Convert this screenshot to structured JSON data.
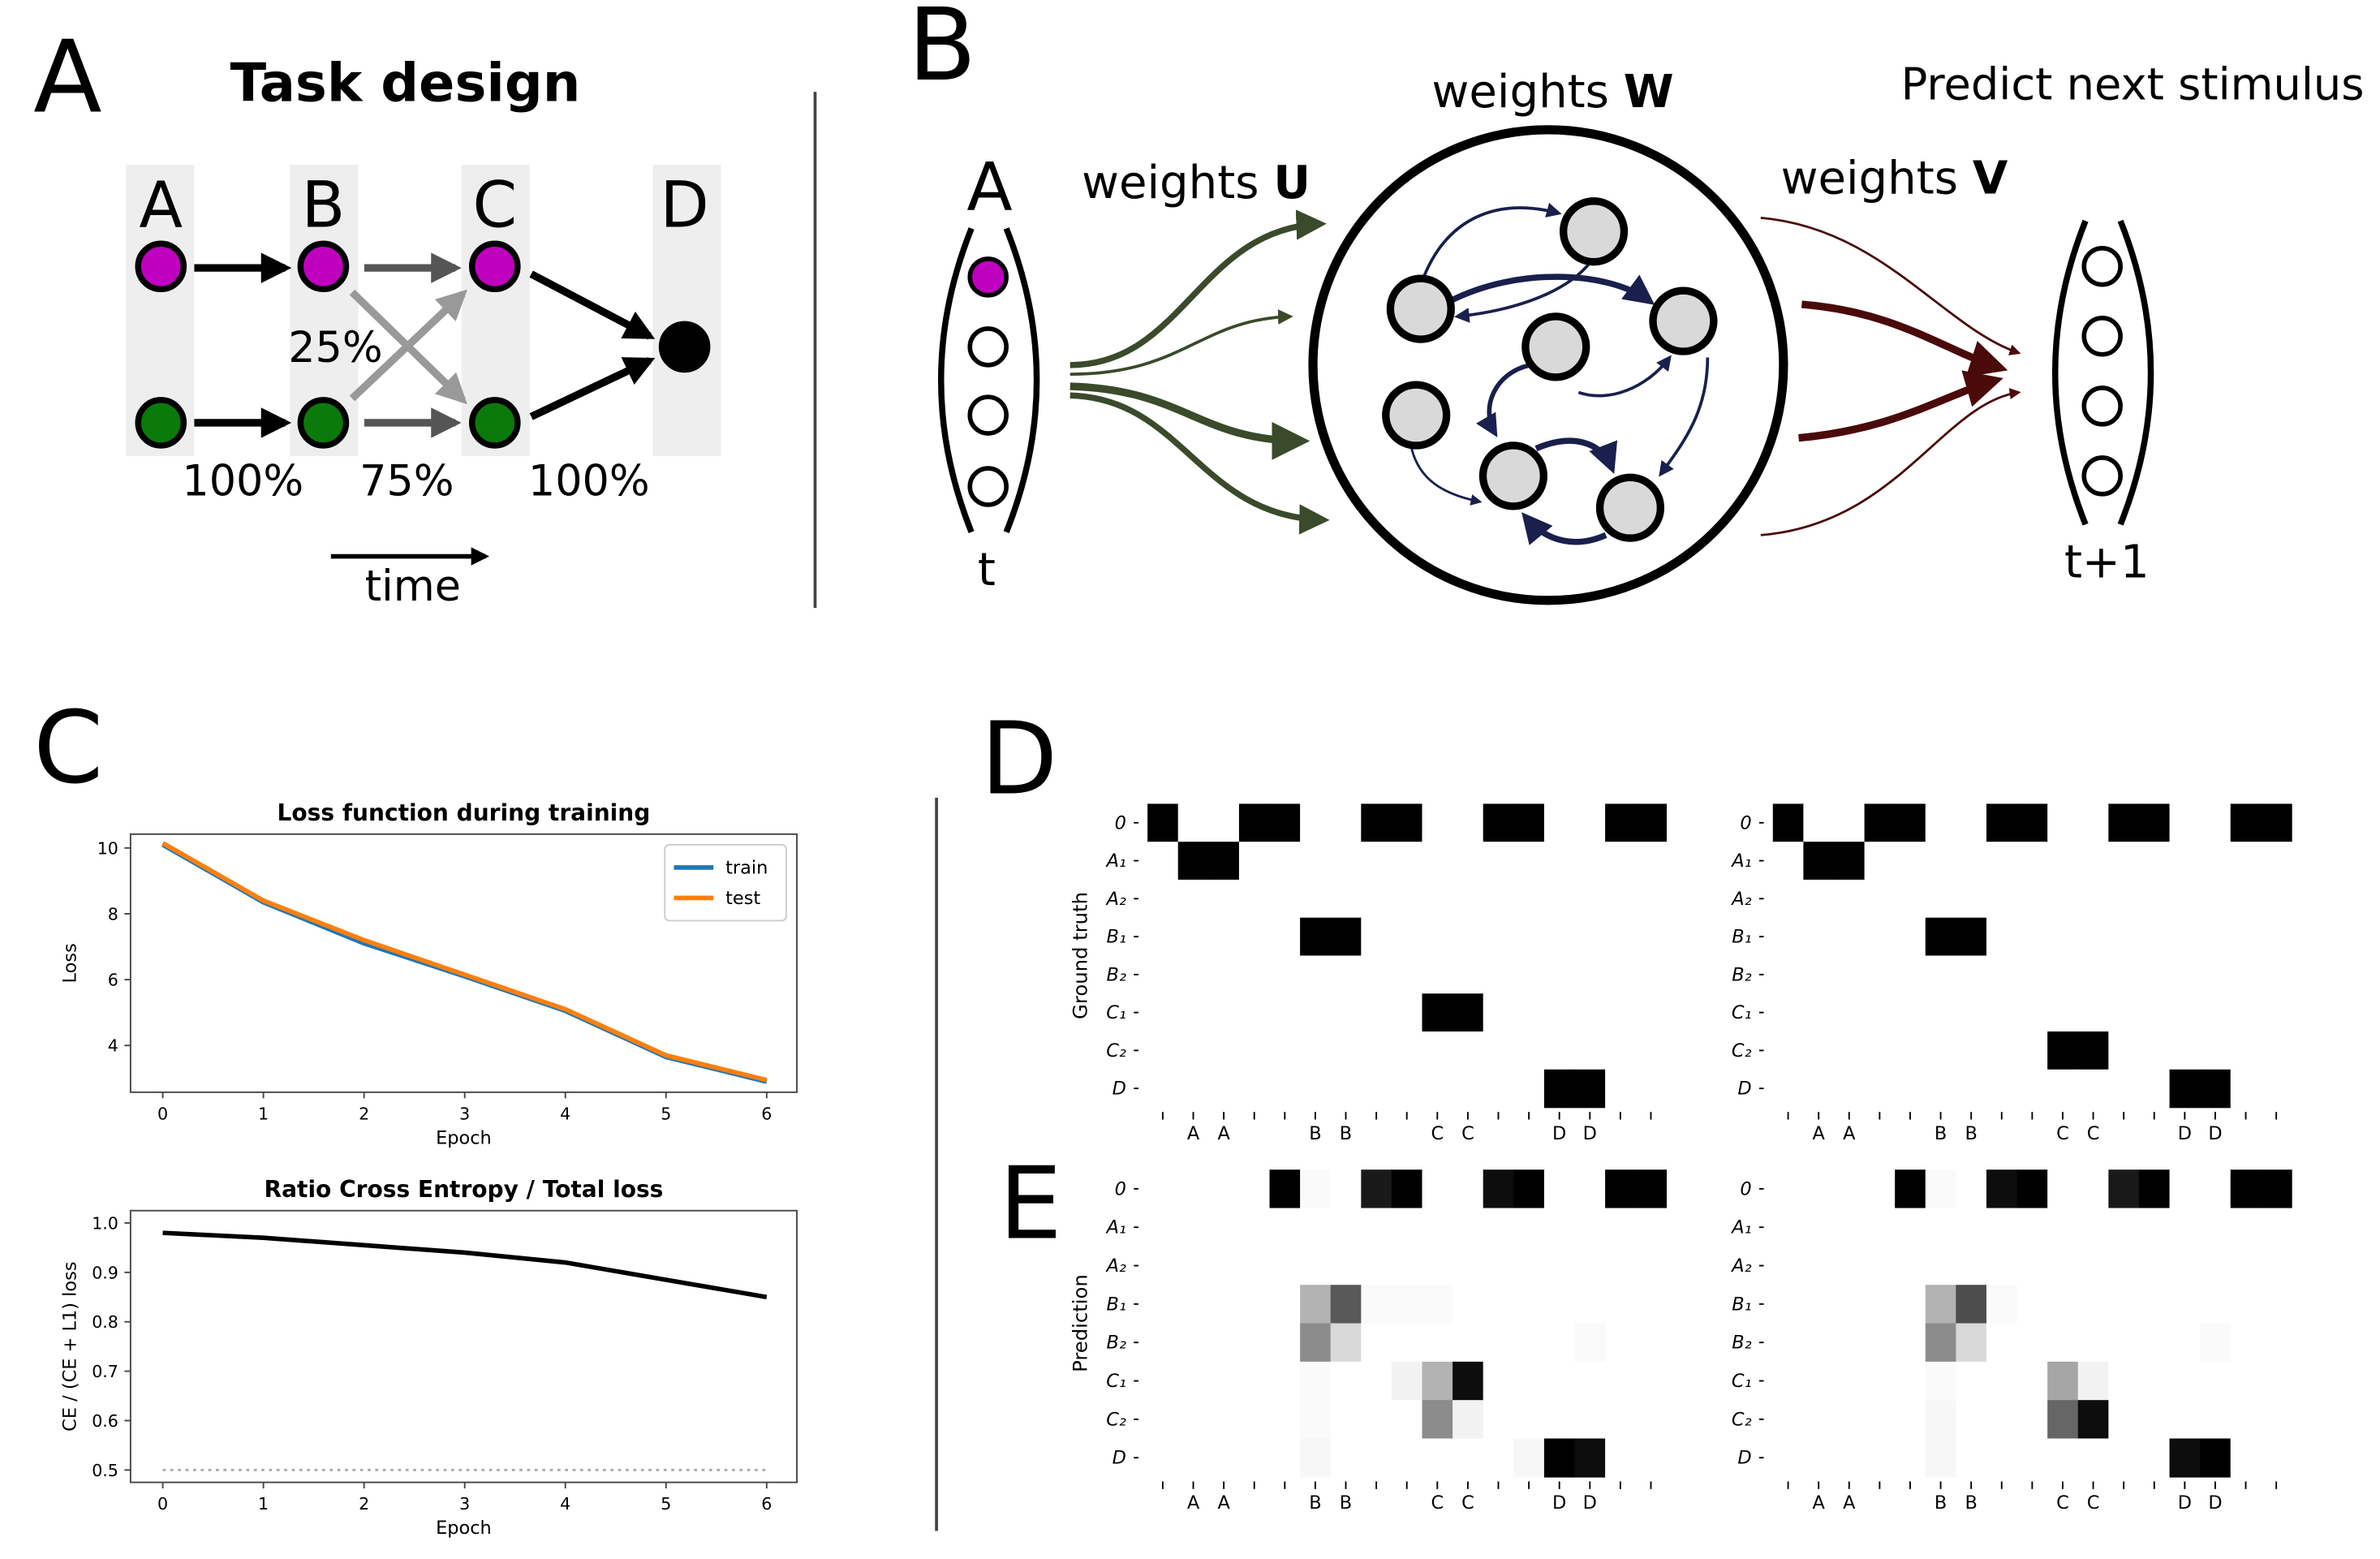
{
  "panel_labels": [
    "A",
    "B",
    "C",
    "D",
    "E"
  ],
  "task_design": {
    "title": "Task design",
    "columns": [
      "A",
      "B",
      "C",
      "D"
    ],
    "probabilities": [
      "25%",
      "100%",
      "75%",
      "100%"
    ],
    "time": "time"
  },
  "network": {
    "input_label": "A",
    "input_time": "t",
    "output_time": "t+1",
    "weights_u": {
      "text": "weights",
      "symbol": "U"
    },
    "weights_w": {
      "text": "weights",
      "symbol": "W"
    },
    "weights_v": {
      "text": "weights",
      "symbol": "V"
    },
    "goal": "Predict next stimulus"
  },
  "chart_data": [
    {
      "type": "line",
      "title": "Loss function during training",
      "xlabel": "Epoch",
      "ylabel": "Loss",
      "x": [
        0,
        1,
        2,
        3,
        4,
        5,
        6
      ],
      "xlim": [
        -0.32,
        6.3
      ],
      "xticks": [
        0,
        1,
        2,
        3,
        4,
        5,
        6
      ],
      "ylim": [
        2.58,
        10.42
      ],
      "yticks": [
        4,
        6,
        8,
        10
      ],
      "legend": "upper right",
      "series": [
        {
          "name": "train",
          "color": "#1f77b4",
          "values": [
            10.1,
            8.35,
            7.1,
            6.1,
            5.05,
            3.65,
            2.9
          ]
        },
        {
          "name": "test",
          "color": "#ff7f0e",
          "values": [
            10.15,
            8.4,
            7.2,
            6.15,
            5.1,
            3.7,
            2.95
          ]
        }
      ]
    },
    {
      "type": "line",
      "title": "Ratio Cross Entropy / Total loss",
      "xlabel": "Epoch",
      "ylabel": "CE / (CE + L1) loss",
      "x": [
        0,
        1,
        2,
        3,
        4,
        5,
        6
      ],
      "xlim": [
        -0.32,
        6.3
      ],
      "xticks": [
        0,
        1,
        2,
        3,
        4,
        5,
        6
      ],
      "ylim": [
        0.475,
        1.025
      ],
      "yticks": [
        0.5,
        0.6,
        0.7,
        0.8,
        0.9,
        {
          "value": 1,
          "label": "1.0"
        }
      ],
      "series": [
        {
          "color": "#000000",
          "values": [
            0.98,
            0.97,
            0.955,
            0.94,
            0.92,
            0.885,
            0.85
          ]
        },
        {
          "color": "#aaaaaa",
          "style": "dotted",
          "values": [
            0.5,
            0.5,
            0.5,
            0.5,
            0.5,
            0.5,
            0.5
          ]
        }
      ]
    },
    {
      "type": "heatmap",
      "ylabel": "Ground truth",
      "colormap": "Greys",
      "categories": [
        null,
        "A",
        "A",
        null,
        null,
        "B",
        "B",
        null,
        null,
        "C",
        "C",
        null,
        null,
        "D",
        "D",
        null,
        null
      ],
      "y_categories": [
        "0",
        "A₁",
        "A₂",
        "B₁",
        "B₂",
        "C₁",
        "C₂",
        "D"
      ],
      "values": [
        [
          1,
          0,
          0,
          1,
          1,
          0,
          0,
          1,
          1,
          0,
          0,
          1,
          1,
          0,
          0,
          1,
          1
        ],
        [
          0,
          1,
          1,
          0,
          0,
          0,
          0,
          0,
          0,
          0,
          0,
          0,
          0,
          0,
          0,
          0,
          0
        ],
        [
          0,
          0,
          0,
          0,
          0,
          0,
          0,
          0,
          0,
          0,
          0,
          0,
          0,
          0,
          0,
          0,
          0
        ],
        [
          0,
          0,
          0,
          0,
          0,
          1,
          1,
          0,
          0,
          0,
          0,
          0,
          0,
          0,
          0,
          0,
          0
        ],
        [
          0,
          0,
          0,
          0,
          0,
          0,
          0,
          0,
          0,
          0,
          0,
          0,
          0,
          0,
          0,
          0,
          0
        ],
        [
          0,
          0,
          0,
          0,
          0,
          0,
          0,
          0,
          0,
          1,
          1,
          0,
          0,
          0,
          0,
          0,
          0
        ],
        [
          0,
          0,
          0,
          0,
          0,
          0,
          0,
          0,
          0,
          0,
          0,
          0,
          0,
          0,
          0,
          0,
          0
        ],
        [
          0,
          0,
          0,
          0,
          0,
          0,
          0,
          0,
          0,
          0,
          0,
          0,
          0,
          1,
          1,
          0,
          0
        ]
      ]
    },
    {
      "type": "heatmap",
      "colormap": "Greys",
      "categories": [
        null,
        "A",
        "A",
        null,
        null,
        "B",
        "B",
        null,
        null,
        "C",
        "C",
        null,
        null,
        "D",
        "D",
        null,
        null
      ],
      "y_categories": [
        "0",
        "A₁",
        "A₂",
        "B₁",
        "B₂",
        "C₁",
        "C₂",
        "D"
      ],
      "values": [
        [
          1,
          0,
          0,
          1,
          1,
          0,
          0,
          1,
          1,
          0,
          0,
          1,
          1,
          0,
          0,
          1,
          1
        ],
        [
          0,
          1,
          1,
          0,
          0,
          0,
          0,
          0,
          0,
          0,
          0,
          0,
          0,
          0,
          0,
          0,
          0
        ],
        [
          0,
          0,
          0,
          0,
          0,
          0,
          0,
          0,
          0,
          0,
          0,
          0,
          0,
          0,
          0,
          0,
          0
        ],
        [
          0,
          0,
          0,
          0,
          0,
          1,
          1,
          0,
          0,
          0,
          0,
          0,
          0,
          0,
          0,
          0,
          0
        ],
        [
          0,
          0,
          0,
          0,
          0,
          0,
          0,
          0,
          0,
          0,
          0,
          0,
          0,
          0,
          0,
          0,
          0
        ],
        [
          0,
          0,
          0,
          0,
          0,
          0,
          0,
          0,
          0,
          0,
          0,
          0,
          0,
          0,
          0,
          0,
          0
        ],
        [
          0,
          0,
          0,
          0,
          0,
          0,
          0,
          0,
          0,
          1,
          1,
          0,
          0,
          0,
          0,
          0,
          0
        ],
        [
          0,
          0,
          0,
          0,
          0,
          0,
          0,
          0,
          0,
          0,
          0,
          0,
          0,
          1,
          1,
          0,
          0
        ]
      ]
    },
    {
      "type": "heatmap",
      "ylabel": "Prediction",
      "colormap": "Greys",
      "categories": [
        null,
        "A",
        "A",
        null,
        null,
        "B",
        "B",
        null,
        null,
        "C",
        "C",
        null,
        null,
        "D",
        "D",
        null,
        null
      ],
      "y_categories": [
        "0",
        "A₁",
        "A₂",
        "B₁",
        "B₂",
        "C₁",
        "C₂",
        "D"
      ],
      "values": [
        [
          0,
          0,
          0,
          0,
          1,
          0.02,
          0,
          0.9,
          1,
          0,
          0,
          0.95,
          1,
          0,
          0,
          1,
          1
        ],
        [
          0,
          0,
          0,
          0,
          0,
          0,
          0,
          0,
          0,
          0,
          0,
          0,
          0,
          0,
          0,
          0,
          0
        ],
        [
          0,
          0,
          0,
          0,
          0,
          0,
          0,
          0,
          0,
          0,
          0,
          0,
          0,
          0,
          0,
          0,
          0
        ],
        [
          0,
          0,
          0,
          0,
          0,
          0.3,
          0.65,
          0.02,
          0.02,
          0.02,
          0,
          0,
          0,
          0,
          0,
          0,
          0
        ],
        [
          0,
          0,
          0,
          0,
          0,
          0.45,
          0.15,
          0,
          0,
          0,
          0,
          0,
          0,
          0,
          0.02,
          0,
          0
        ],
        [
          0,
          0,
          0,
          0,
          0,
          0.02,
          0,
          0,
          0.05,
          0.3,
          0.95,
          0,
          0,
          0,
          0,
          0,
          0
        ],
        [
          0,
          0,
          0,
          0,
          0,
          0.02,
          0,
          0,
          0,
          0.45,
          0.05,
          0,
          0,
          0,
          0,
          0,
          0
        ],
        [
          0,
          0,
          0,
          0,
          0,
          0.03,
          0,
          0,
          0,
          0,
          0,
          0,
          0.03,
          1,
          0.95,
          0,
          0
        ]
      ]
    },
    {
      "type": "heatmap",
      "colormap": "Greys",
      "categories": [
        null,
        "A",
        "A",
        null,
        null,
        "B",
        "B",
        null,
        null,
        "C",
        "C",
        null,
        null,
        "D",
        "D",
        null,
        null
      ],
      "y_categories": [
        "0",
        "A₁",
        "A₂",
        "B₁",
        "B₂",
        "C₁",
        "C₂",
        "D"
      ],
      "values": [
        [
          0,
          0,
          0,
          0,
          1,
          0.02,
          0,
          0.95,
          1,
          0,
          0,
          0.9,
          1,
          0,
          0,
          1,
          1
        ],
        [
          0,
          0,
          0,
          0,
          0,
          0,
          0,
          0,
          0,
          0,
          0,
          0,
          0,
          0,
          0,
          0,
          0
        ],
        [
          0,
          0,
          0,
          0,
          0,
          0,
          0,
          0,
          0,
          0,
          0,
          0,
          0,
          0,
          0,
          0,
          0
        ],
        [
          0,
          0,
          0,
          0,
          0,
          0.3,
          0.7,
          0.02,
          0,
          0,
          0,
          0,
          0,
          0,
          0,
          0,
          0
        ],
        [
          0,
          0,
          0,
          0,
          0,
          0.45,
          0.15,
          0,
          0,
          0,
          0,
          0,
          0,
          0,
          0.02,
          0,
          0
        ],
        [
          0,
          0,
          0,
          0,
          0,
          0.02,
          0,
          0,
          0,
          0.35,
          0.05,
          0,
          0,
          0,
          0,
          0,
          0
        ],
        [
          0,
          0,
          0,
          0,
          0,
          0.03,
          0,
          0,
          0,
          0.6,
          0.95,
          0,
          0,
          0,
          0,
          0,
          0
        ],
        [
          0,
          0,
          0,
          0,
          0,
          0.03,
          0,
          0,
          0,
          0,
          0,
          0,
          0,
          0.95,
          1,
          0,
          0
        ]
      ]
    }
  ]
}
